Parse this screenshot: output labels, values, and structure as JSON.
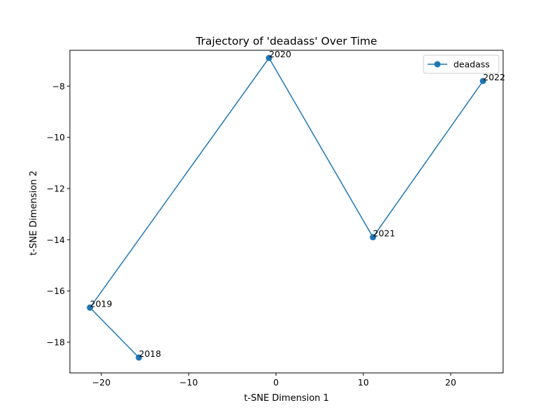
{
  "chart_data": {
    "type": "line",
    "title": "Trajectory of 'deadass' Over Time",
    "xlabel": "t-SNE Dimension 1",
    "ylabel": "t-SNE Dimension 2",
    "xlim": [
      -23.6,
      26.0
    ],
    "ylim": [
      -19.2,
      -6.6
    ],
    "xticks": [
      -20,
      -10,
      0,
      10,
      20
    ],
    "yticks": [
      -18,
      -16,
      -14,
      -12,
      -10,
      -8
    ],
    "tick_labels_x": [
      "−20",
      "−10",
      "0",
      "10",
      "20"
    ],
    "tick_labels_y": [
      "−18",
      "−16",
      "−14",
      "−12",
      "−10",
      "−8"
    ],
    "grid": false,
    "legend_position": "top-right",
    "series": [
      {
        "name": "deadass",
        "color": "#1f77b4",
        "marker": "circle",
        "points": [
          {
            "label": "2018",
            "x": -15.7,
            "y": -18.6
          },
          {
            "label": "2019",
            "x": -21.3,
            "y": -16.65
          },
          {
            "label": "2020",
            "x": -0.8,
            "y": -6.9
          },
          {
            "label": "2021",
            "x": 11.1,
            "y": -13.9
          },
          {
            "label": "2022",
            "x": 23.7,
            "y": -7.8
          }
        ]
      }
    ]
  }
}
